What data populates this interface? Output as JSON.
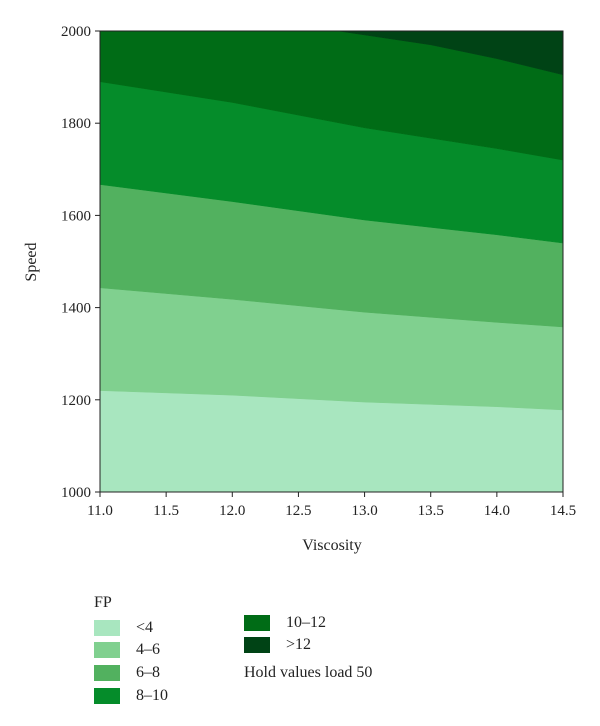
{
  "chart_data": {
    "type": "contour",
    "xlabel": "Viscosity",
    "ylabel": "Speed",
    "xlim": [
      11.0,
      14.5
    ],
    "ylim": [
      1000,
      2000
    ],
    "x_ticks": [
      "11.0",
      "11.5",
      "12.0",
      "12.5",
      "13.0",
      "13.5",
      "14.0",
      "14.5"
    ],
    "y_ticks": [
      "1000",
      "1200",
      "1400",
      "1600",
      "1800",
      "2000"
    ],
    "contour_boundaries": [
      {
        "level": 4,
        "points": [
          [
            11.0,
            1220
          ],
          [
            12.0,
            1210
          ],
          [
            13.0,
            1195
          ],
          [
            14.0,
            1185
          ],
          [
            14.5,
            1178
          ]
        ]
      },
      {
        "level": 6,
        "points": [
          [
            11.0,
            1443
          ],
          [
            12.0,
            1418
          ],
          [
            13.0,
            1390
          ],
          [
            14.0,
            1368
          ],
          [
            14.5,
            1358
          ]
        ]
      },
      {
        "level": 8,
        "points": [
          [
            11.0,
            1667
          ],
          [
            12.0,
            1630
          ],
          [
            13.0,
            1590
          ],
          [
            14.0,
            1558
          ],
          [
            14.5,
            1540
          ]
        ]
      },
      {
        "level": 10,
        "points": [
          [
            11.0,
            1890
          ],
          [
            12.0,
            1845
          ],
          [
            13.0,
            1790
          ],
          [
            14.0,
            1745
          ],
          [
            14.5,
            1720
          ]
        ]
      },
      {
        "level": 12,
        "points": [
          [
            12.8,
            2000
          ],
          [
            13.5,
            1970
          ],
          [
            14.0,
            1940
          ],
          [
            14.5,
            1905
          ]
        ]
      }
    ],
    "legend": {
      "title": "FP",
      "items": [
        {
          "label": "<4",
          "color": "#a8e6bf"
        },
        {
          "label": "4–6",
          "color": "#80d08f"
        },
        {
          "label": "6–8",
          "color": "#52b15f"
        },
        {
          "label": "8–10",
          "color": "#058c2a"
        },
        {
          "label": "10–12",
          "color": "#006c16"
        },
        {
          "label": ">12",
          "color": "#004315"
        }
      ],
      "note": "Hold values load 50"
    }
  }
}
